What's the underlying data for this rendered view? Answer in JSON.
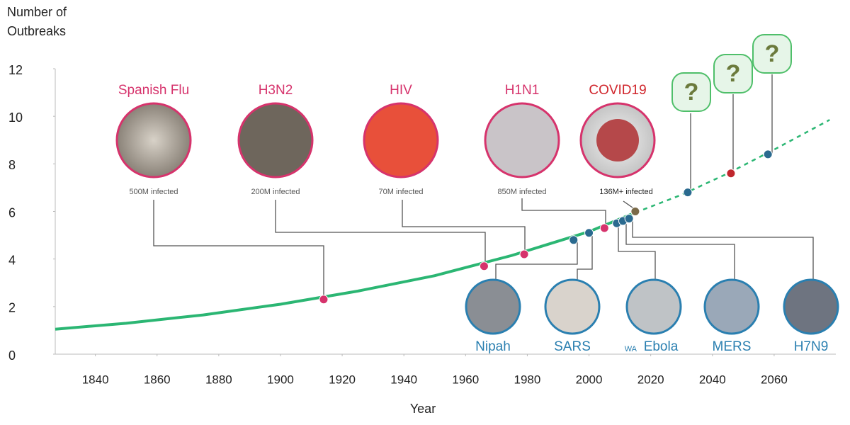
{
  "chart_data": {
    "type": "line",
    "y_label": "Number of Outbreaks",
    "x_label": "Year",
    "xlim": [
      1827,
      2080
    ],
    "ylim": [
      0,
      12
    ],
    "xticks": [
      1840,
      1860,
      1880,
      1900,
      1920,
      1940,
      1960,
      1980,
      2000,
      2020,
      2040,
      2060
    ],
    "yticks": [
      0,
      2,
      4,
      6,
      8,
      10,
      12
    ],
    "series": [
      {
        "color": "#2bb673",
        "style": "solid",
        "x": [
          1827,
          1850,
          1875,
          1900,
          1925,
          1950,
          1975,
          2000,
          2015
        ],
        "values": [
          1.05,
          1.3,
          1.65,
          2.1,
          2.65,
          3.3,
          4.15,
          5.15,
          5.95
        ]
      },
      {
        "color": "#2bb673",
        "style": "dashed",
        "x": [
          2015,
          2030,
          2045,
          2060,
          2078
        ],
        "values": [
          5.95,
          6.7,
          7.6,
          8.6,
          9.85
        ]
      }
    ],
    "points": {
      "x": [
        1914,
        1966,
        1979,
        1995,
        2000,
        2005,
        2009,
        2011,
        2013,
        2015,
        2032,
        2046,
        2058
      ],
      "values": [
        2.3,
        3.7,
        4.2,
        4.8,
        5.1,
        5.3,
        5.5,
        5.6,
        5.7,
        6.0,
        6.8,
        7.6,
        8.4
      ],
      "colors": [
        "#d6336c",
        "#d6336c",
        "#d6336c",
        "#2a6a8f",
        "#2a6a8f",
        "#d6336c",
        "#2a6a8f",
        "#2a6a8f",
        "#2a6a8f",
        "#7a6a48",
        "#2a6a8f",
        "#c0272d",
        "#2a6a8f"
      ]
    },
    "top_labels": [
      {
        "name": "Spanish Flu",
        "note": "500M infected"
      },
      {
        "name": "H3N2",
        "note": "200M infected"
      },
      {
        "name": "HIV",
        "note": "70M infected"
      },
      {
        "name": "H1N1",
        "note": "850M infected"
      },
      {
        "name": "COVID19",
        "note": "136M+ infected"
      }
    ],
    "bottom_labels": [
      {
        "name": "Nipah"
      },
      {
        "name": "SARS"
      },
      {
        "prefix": "WA",
        "name": "Ebola"
      },
      {
        "name": "MERS"
      },
      {
        "name": "H7N9"
      }
    ],
    "future": [
      "?",
      "?",
      "?"
    ]
  }
}
